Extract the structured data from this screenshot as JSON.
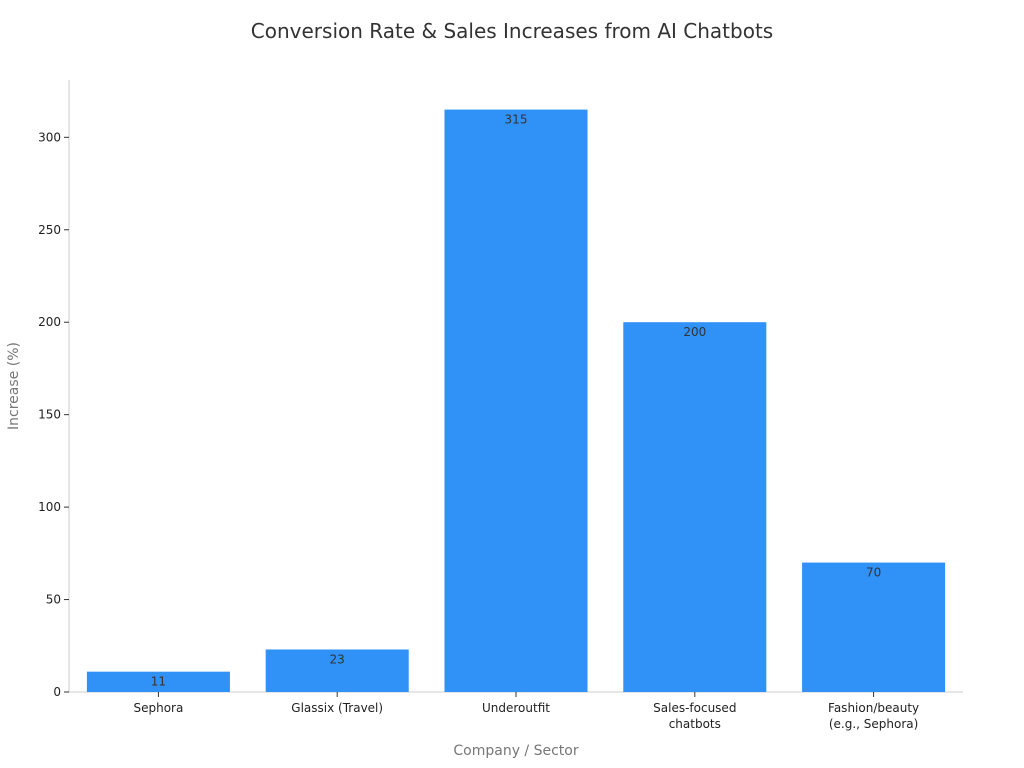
{
  "chart_data": {
    "type": "bar",
    "title": "Conversion Rate & Sales Increases from AI Chatbots",
    "xlabel": "Company / Sector",
    "ylabel": "Increase (%)",
    "categories": [
      "Sephora",
      "Glassix (Travel)",
      "Underoutfit",
      "Sales-focused chatbots",
      "Fashion/beauty (e.g., Sephora)"
    ],
    "category_lines": [
      [
        "Sephora"
      ],
      [
        "Glassix (Travel)"
      ],
      [
        "Underoutfit"
      ],
      [
        "Sales-focused",
        "chatbots"
      ],
      [
        "Fashion/beauty",
        "(e.g., Sephora)"
      ]
    ],
    "values": [
      11,
      23,
      315,
      200,
      70
    ],
    "ylim": [
      0,
      331
    ],
    "yticks": [
      0,
      50,
      100,
      150,
      200,
      250,
      300
    ],
    "grid": false,
    "bar_color": "#3092f7",
    "axis_color": "#cccccc",
    "text_color": "#333333"
  }
}
